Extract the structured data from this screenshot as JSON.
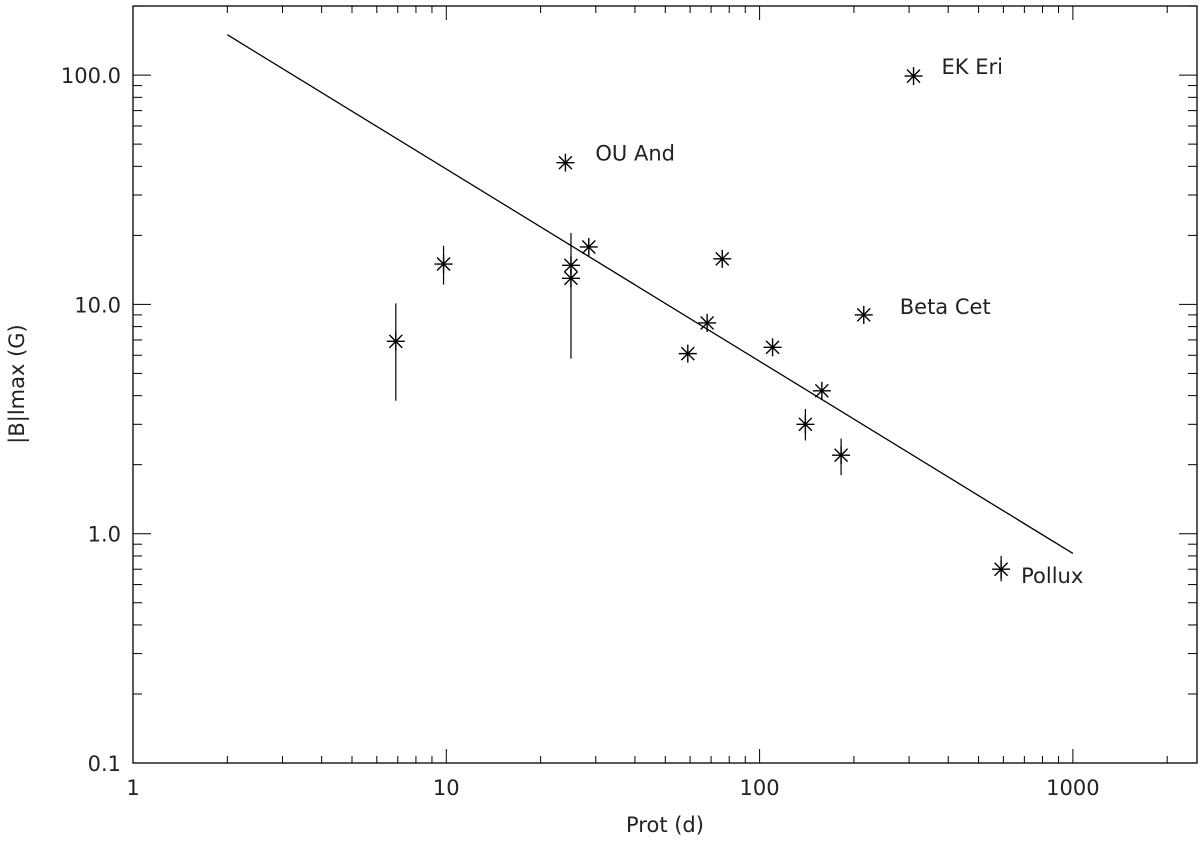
{
  "chart_data": {
    "type": "scatter",
    "xlabel": "Prot (d)",
    "ylabel": "|B|lmax (G)",
    "xscale": "log",
    "yscale": "log",
    "xlim": [
      1,
      2500
    ],
    "ylim": [
      0.1,
      200
    ],
    "xticks": [
      {
        "value": 1,
        "label": "1"
      },
      {
        "value": 10,
        "label": "10"
      },
      {
        "value": 100,
        "label": "100"
      },
      {
        "value": 1000,
        "label": "1000"
      }
    ],
    "yticks": [
      {
        "value": 0.1,
        "label": "0.1"
      },
      {
        "value": 1,
        "label": "1.0"
      },
      {
        "value": 10,
        "label": "10.0"
      },
      {
        "value": 100,
        "label": "100.0"
      }
    ],
    "points": [
      {
        "x": 6.9,
        "y": 6.9,
        "yerr_low": 3.8,
        "yerr_high": 10.1,
        "label": ""
      },
      {
        "x": 9.8,
        "y": 15.0,
        "yerr_low": 12.2,
        "yerr_high": 18.0,
        "label": ""
      },
      {
        "x": 24.0,
        "y": 41.5,
        "label": "OU And"
      },
      {
        "x": 25.0,
        "y": 13.0,
        "yerr_low": 5.8,
        "yerr_high": 20.5,
        "label": ""
      },
      {
        "x": 25.0,
        "y": 14.8,
        "label": ""
      },
      {
        "x": 28.5,
        "y": 17.8,
        "label": ""
      },
      {
        "x": 59.0,
        "y": 6.1,
        "label": ""
      },
      {
        "x": 68.0,
        "y": 8.3,
        "label": ""
      },
      {
        "x": 76.0,
        "y": 15.8,
        "label": ""
      },
      {
        "x": 110.0,
        "y": 6.5,
        "label": ""
      },
      {
        "x": 140.0,
        "y": 3.0,
        "yerr_low": 2.55,
        "yerr_high": 3.5,
        "label": ""
      },
      {
        "x": 158.0,
        "y": 4.2,
        "label": ""
      },
      {
        "x": 182.0,
        "y": 2.2,
        "yerr_low": 1.8,
        "yerr_high": 2.6,
        "label": ""
      },
      {
        "x": 215.0,
        "y": 9.0,
        "label": "Beta Cet"
      },
      {
        "x": 310.0,
        "y": 99.0,
        "label": "EK Eri"
      },
      {
        "x": 590.0,
        "y": 0.7,
        "yerr_low": 0.62,
        "yerr_high": 0.8,
        "label": "Pollux"
      }
    ],
    "fit_line": {
      "x": [
        2.0,
        1000.0
      ],
      "y": [
        150.0,
        0.82
      ]
    },
    "grid": false,
    "legend": "none"
  }
}
